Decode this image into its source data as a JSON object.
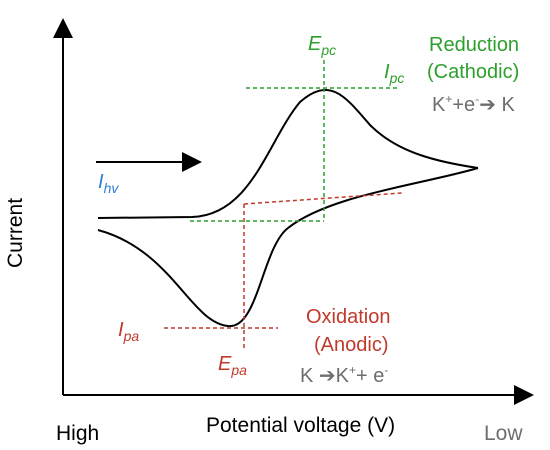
{
  "colors": {
    "axis": "#000000",
    "curve": "#000000",
    "reduction": "#2ca02c",
    "oxidation": "#c0392b",
    "blue": "#2f7fd6",
    "gray": "#6e6e6e"
  },
  "labels": {
    "y_axis": "Current",
    "x_axis": "Potential voltage (V)",
    "x_high": "High",
    "x_low": "Low",
    "i_hv": {
      "main": "I",
      "sub": "hv"
    },
    "e_pc": {
      "main": "E",
      "sub": "pc"
    },
    "i_pc": {
      "main": "I",
      "sub": "pc"
    },
    "i_pa": {
      "main": "I",
      "sub": "pa"
    },
    "e_pa": {
      "main": "E",
      "sub": "pa"
    },
    "reduction_title": "Reduction",
    "reduction_subtitle": "(Cathodic)",
    "reduction_eq_left": "K",
    "reduction_eq_sup": "+",
    "reduction_eq_mid": "+e",
    "reduction_eq_sup2": "-",
    "reduction_eq_arrow": "➔",
    "reduction_eq_right": " K",
    "oxidation_title": "Oxidation",
    "oxidation_subtitle": "(Anodic)",
    "oxidation_eq_left": "K ",
    "oxidation_eq_arrow": "➔",
    "oxidation_eq_mid": "K",
    "oxidation_eq_sup": "+",
    "oxidation_eq_right": "+ e",
    "oxidation_eq_sup2": "-"
  }
}
